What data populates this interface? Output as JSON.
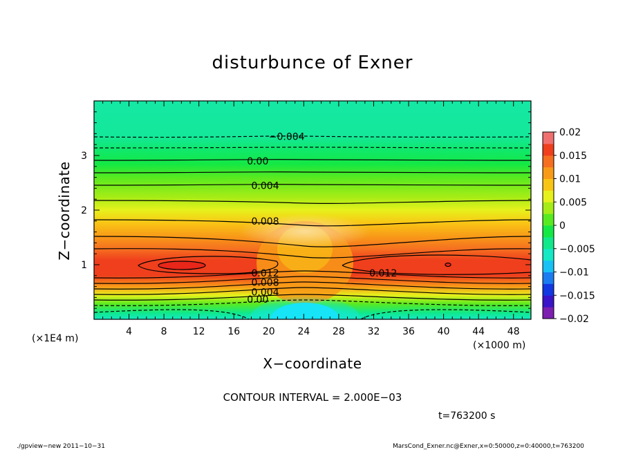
{
  "chart_data": {
    "type": "heatmap",
    "subtype": "filled-contour",
    "title": "disturbunce of Exner",
    "xlabel": "X−coordinate",
    "ylabel": "Z−coordinate",
    "x_unit": "(×1000 m)",
    "y_unit": "(×1E4 m)",
    "xlim": [
      0,
      50
    ],
    "ylim": [
      0,
      4
    ],
    "x_ticks": [
      4,
      8,
      12,
      16,
      20,
      24,
      28,
      32,
      36,
      40,
      44,
      48
    ],
    "x_tick_labels": [
      "4",
      "8",
      "12",
      "16",
      "20",
      "24",
      "28",
      "32",
      "36",
      "40",
      "44",
      "48"
    ],
    "y_ticks": [
      1,
      2,
      3
    ],
    "y_tick_labels": [
      "1",
      "2",
      "3"
    ],
    "colorbar": {
      "min": -0.02,
      "max": 0.02,
      "ticks": [
        0.02,
        0.015,
        0.01,
        0.005,
        0,
        -0.005,
        -0.01,
        -0.015,
        -0.02
      ],
      "tick_labels": [
        "0.02",
        "0.015",
        "0.01",
        "0.005",
        "0",
        "−0.005",
        "−0.01",
        "−0.015",
        "−0.02"
      ]
    },
    "contour_labels": [
      {
        "text": "−0.004",
        "x": 20.0,
        "z": 3.35
      },
      {
        "text": "0.00",
        "x": 17.5,
        "z": 2.9
      },
      {
        "text": "0.004",
        "x": 18.0,
        "z": 2.45
      },
      {
        "text": "0.008",
        "x": 18.0,
        "z": 1.8
      },
      {
        "text": "0.012",
        "x": 18.0,
        "z": 0.85
      },
      {
        "text": "0.008",
        "x": 18.0,
        "z": 0.68
      },
      {
        "text": "0.004",
        "x": 18.0,
        "z": 0.5
      },
      {
        "text": "0.00",
        "x": 17.5,
        "z": 0.37
      },
      {
        "text": "0.012",
        "x": 31.5,
        "z": 0.85
      }
    ],
    "contour_interval_text": "CONTOUR INTERVAL = 2.000E−03",
    "time_text": "t=763200 s"
  },
  "footer": {
    "left": "./gpview−new   2011−10−31",
    "right": "MarsCond_Exner.nc@Exner,x=0:50000,z=0:40000,t=763200"
  },
  "colors": {
    "palette": [
      "#7d1fb0",
      "#3a14c8",
      "#1238e2",
      "#1a7cf0",
      "#17c1f6",
      "#14e8c4",
      "#10e88a",
      "#14e844",
      "#58ea20",
      "#a6ec16",
      "#e6f11c",
      "#f9c515",
      "#f89a18",
      "#f66e20",
      "#ef3f1d",
      "#f07070"
    ]
  }
}
